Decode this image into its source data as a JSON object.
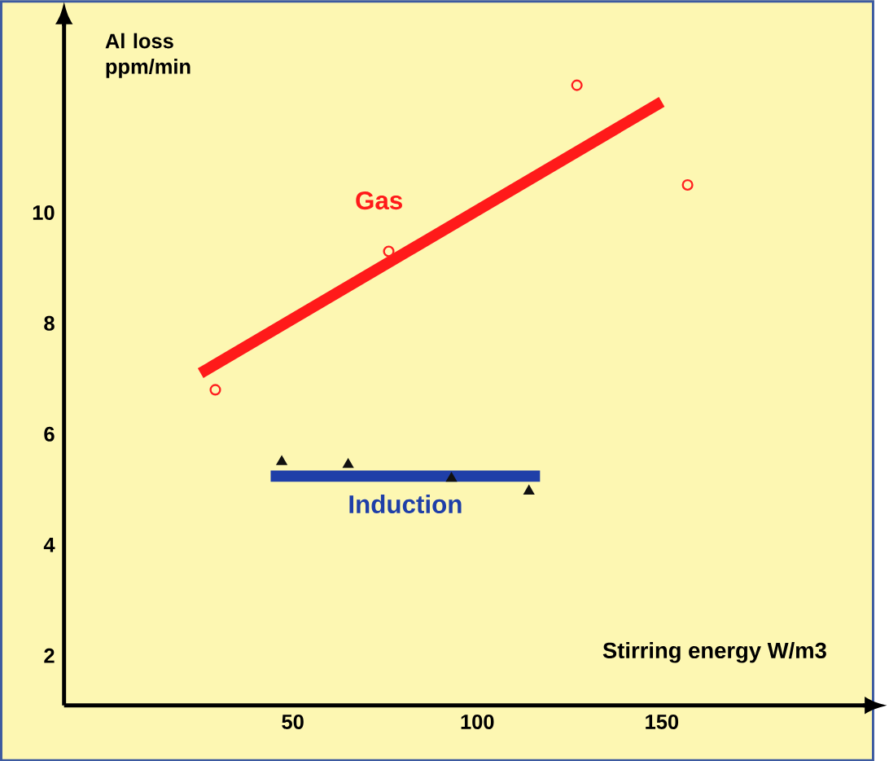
{
  "chart_data": {
    "type": "scatter",
    "xlabel": "Stirring energy W/m3",
    "ylabel": "Al loss ppm/min",
    "xlim": [
      -12,
      205
    ],
    "ylim": [
      1.1,
      13.4
    ],
    "xticks": [
      50,
      100,
      150
    ],
    "yticks": [
      2,
      4,
      6,
      8,
      10
    ],
    "grid": false,
    "series": [
      {
        "color": "#ff2020",
        "marker": "circle",
        "x": [
          29,
          76,
          127,
          157
        ],
        "values": [
          6.8,
          9.3,
          12.3,
          10.5
        ]
      },
      {
        "type": "line",
        "name": "Gas",
        "color": "#ff1a1a",
        "x": [
          25,
          150
        ],
        "values": [
          7.1,
          12.0
        ]
      },
      {
        "type": "line",
        "name": "Induction",
        "color": "#1f3fa8",
        "x": [
          44,
          117
        ],
        "values": [
          5.24,
          5.24
        ]
      },
      {
        "color": "#111111",
        "marker": "triangle",
        "x": [
          47,
          65,
          93,
          114
        ],
        "values": [
          5.5,
          5.45,
          5.2,
          4.97
        ]
      }
    ]
  }
}
